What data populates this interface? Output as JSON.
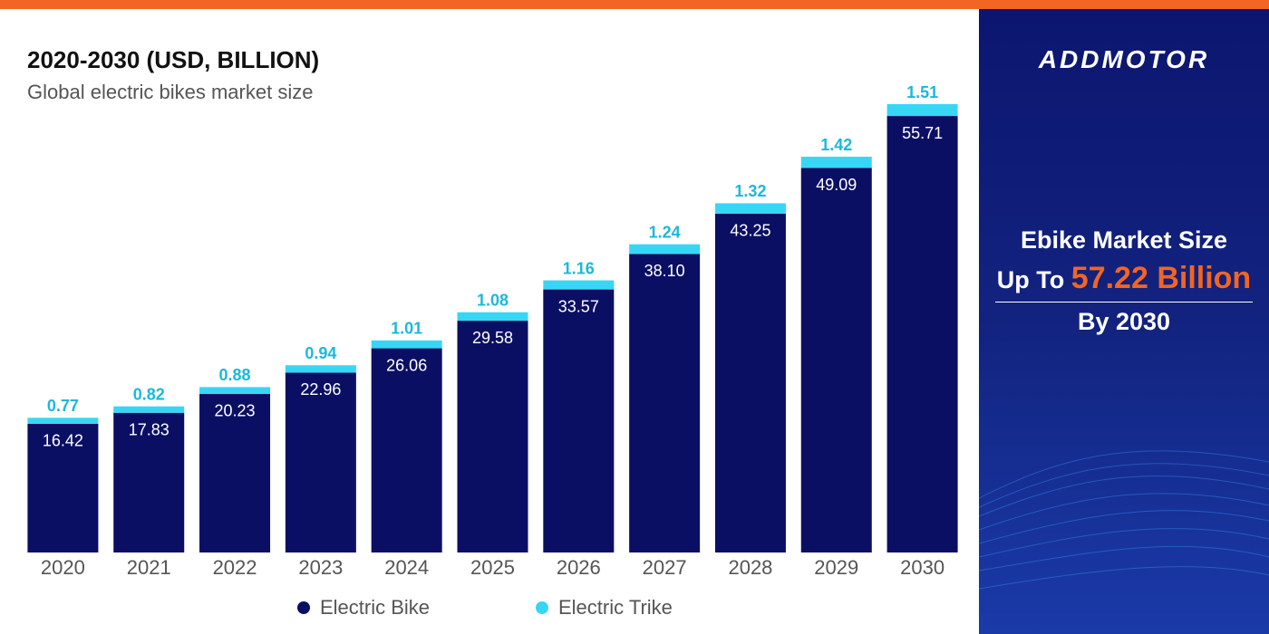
{
  "chart_data": {
    "type": "stacked-bar",
    "title": "2020-2030 (USD, BILLION)",
    "subtitle": "Global electric bikes market size",
    "categories": [
      "2020",
      "2021",
      "2022",
      "2023",
      "2024",
      "2025",
      "2026",
      "2027",
      "2028",
      "2029",
      "2030"
    ],
    "series": [
      {
        "name": "Electric Bike",
        "color": "#0b0f64",
        "values": [
          16.42,
          17.83,
          20.23,
          22.96,
          26.06,
          29.58,
          33.57,
          38.1,
          43.25,
          49.09,
          55.71
        ],
        "value_labels": [
          "16.42",
          "17.83",
          "20.23",
          "22.96",
          "26.06",
          "29.58",
          "33.57",
          "38.10",
          "43.25",
          "49.09",
          "55.71"
        ]
      },
      {
        "name": "Electric Trike",
        "color": "#38d6f5",
        "values": [
          0.77,
          0.82,
          0.88,
          0.94,
          1.01,
          1.08,
          1.16,
          1.24,
          1.32,
          1.42,
          1.51
        ],
        "value_labels": [
          "0.77",
          "0.82",
          "0.88",
          "0.94",
          "1.01",
          "1.08",
          "1.16",
          "1.24",
          "1.32",
          "1.42",
          "1.51"
        ]
      }
    ],
    "legend": "bottom"
  },
  "panel": {
    "logo": "ADDMOTOR",
    "headline": "Ebike Market Size",
    "prefix": "Up To",
    "highlight": "57.22 Billion",
    "footer": "By 2030"
  }
}
